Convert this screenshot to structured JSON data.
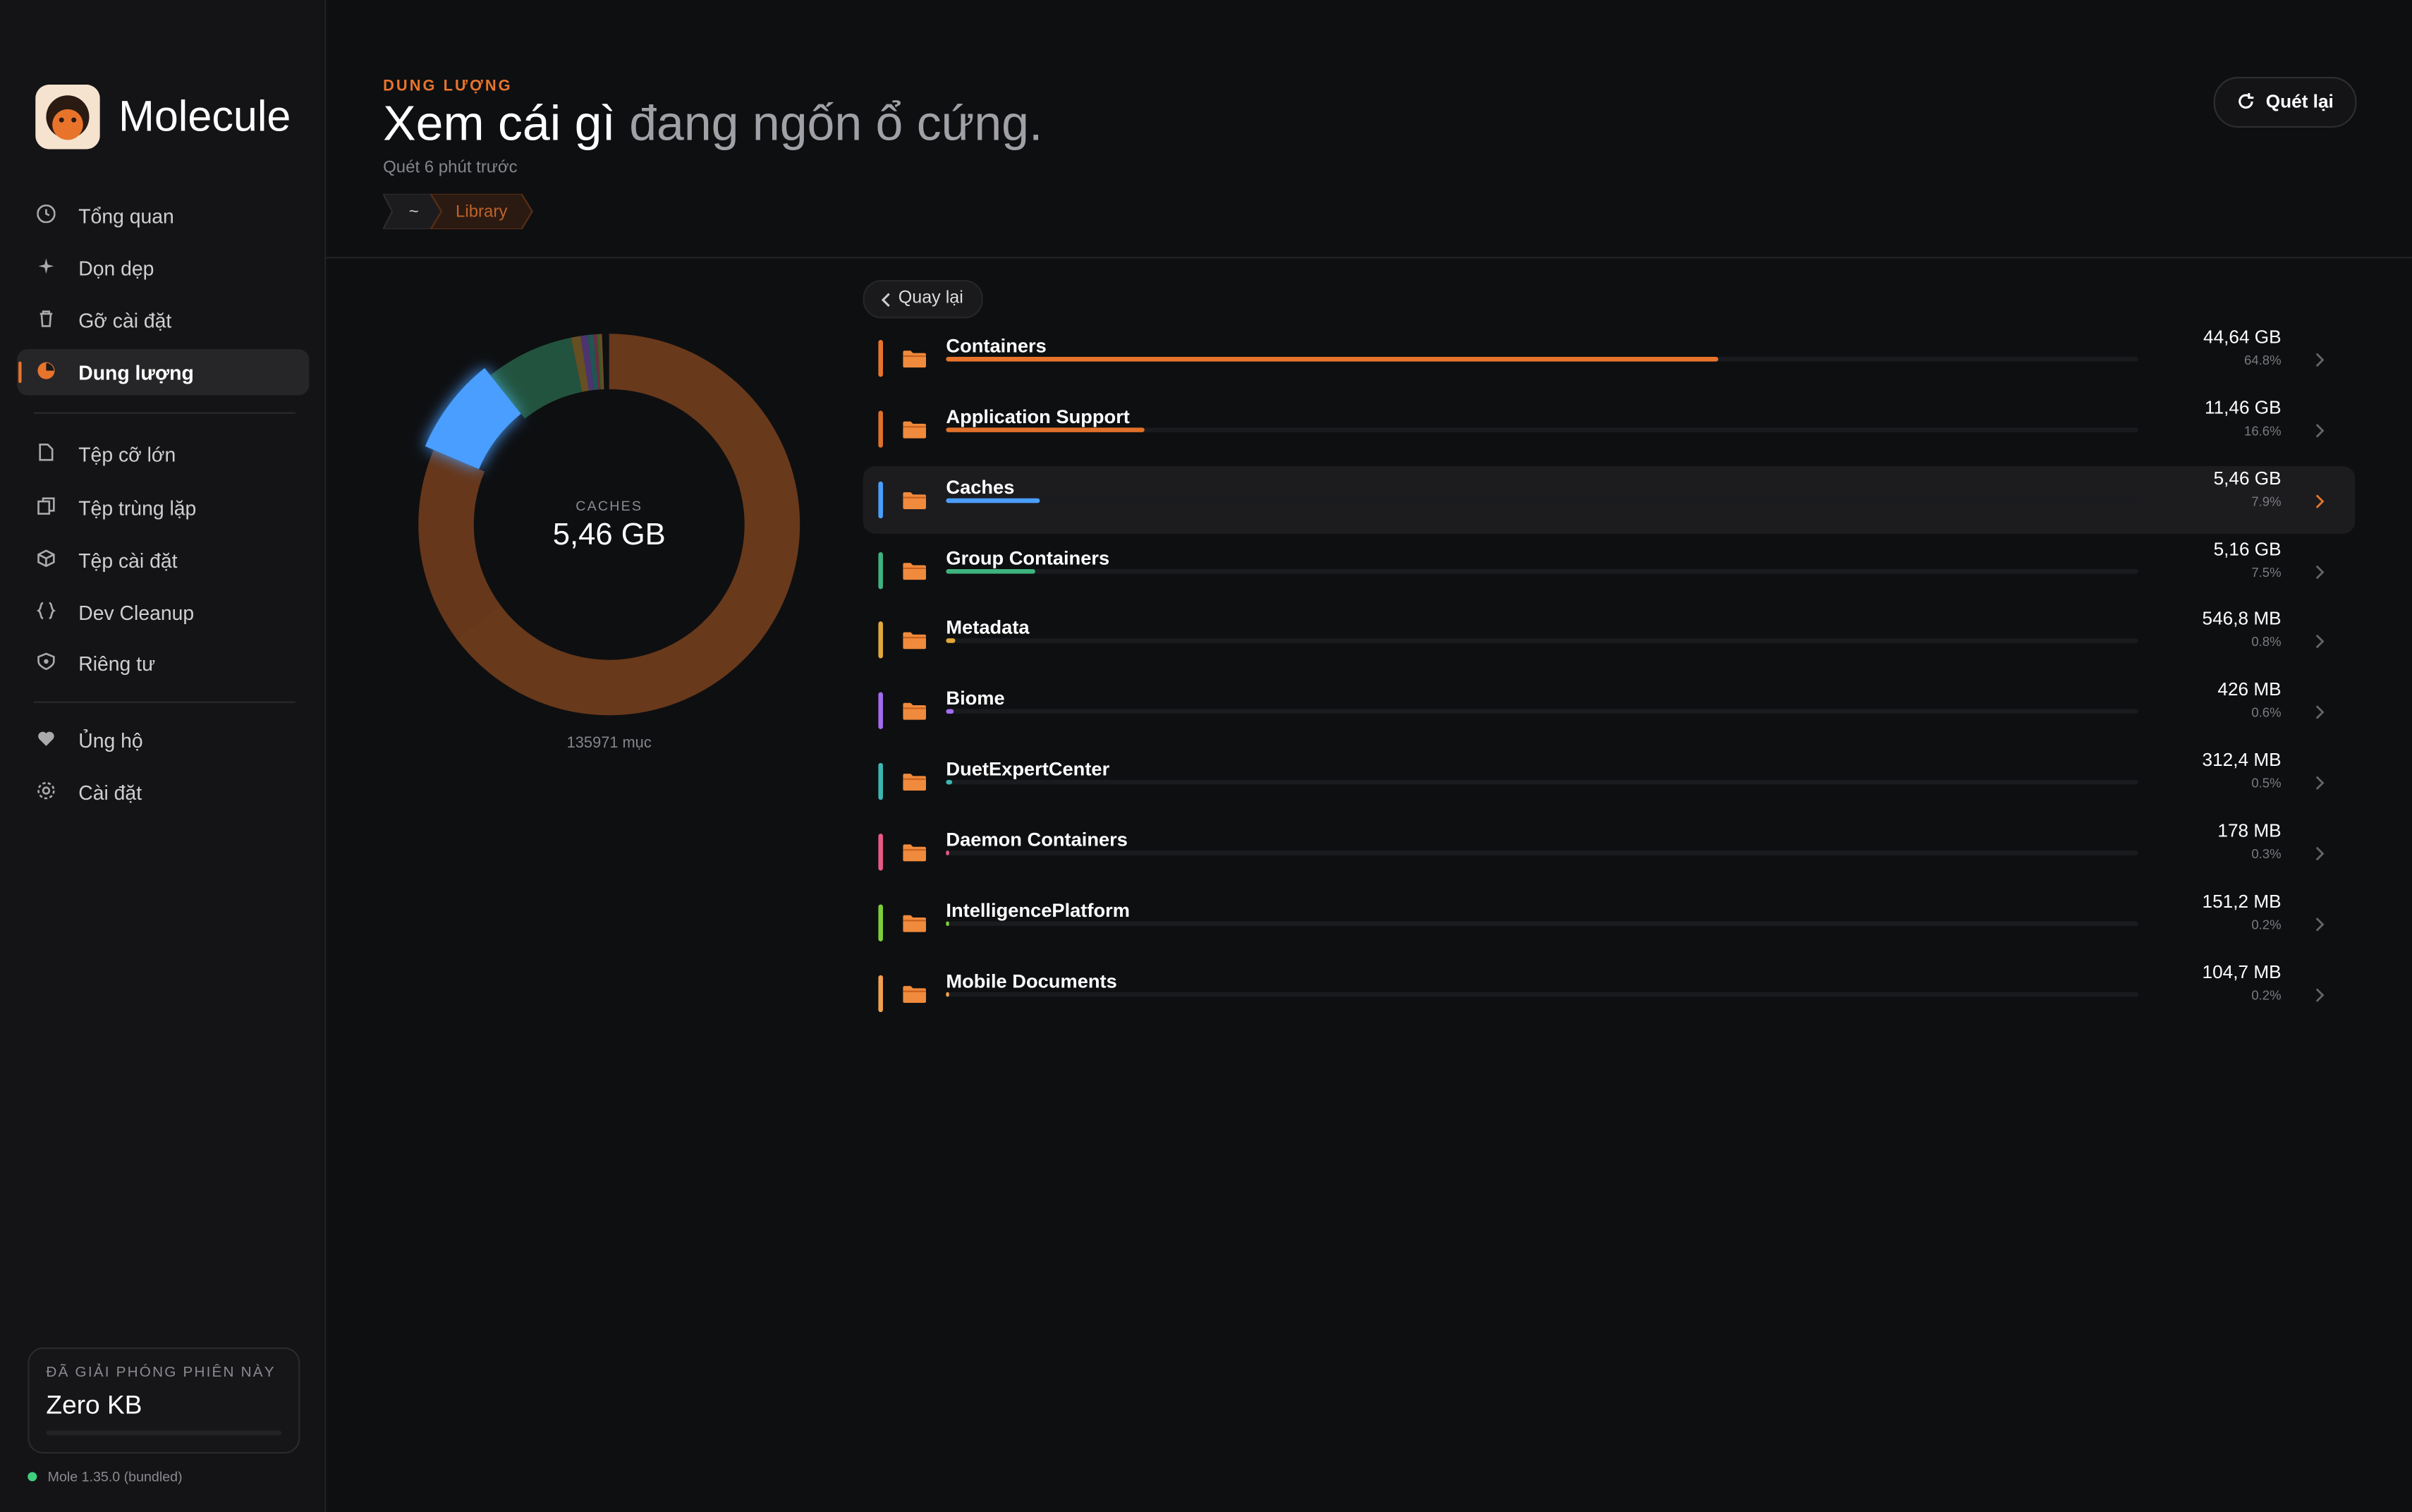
{
  "sidebar": {
    "app_name": "Molecule",
    "nav": [
      [
        {
          "label": "Tổng quan"
        },
        {
          "label": "Dọn dẹp"
        },
        {
          "label": "Gỡ cài đặt"
        },
        {
          "label": "Dung lượng"
        }
      ],
      [
        {
          "label": "Tệp cỡ lớn"
        },
        {
          "label": "Tệp trùng lặp"
        },
        {
          "label": "Tệp cài đặt"
        },
        {
          "label": "Dev Cleanup"
        },
        {
          "label": "Riêng tư"
        }
      ],
      [
        {
          "label": "Ủng hộ"
        },
        {
          "label": "Cài đặt"
        }
      ]
    ],
    "active": [
      0,
      3
    ],
    "footer": {
      "label": "ĐÃ GIẢI PHÓNG PHIÊN NÀY",
      "value": "Zero KB"
    },
    "version": "Mole 1.35.0 (bundled)"
  },
  "header": {
    "eyebrow": "DUNG LƯỢNG",
    "title_lead": "Xem cái gì",
    "title_rest": "đang ngốn ổ cứng.",
    "subtitle": "Quét 6 phút trước",
    "breadcrumbs": [
      "~",
      "Library"
    ],
    "rescan_button": "Quét lại"
  },
  "back_button": "Quay lại",
  "donut": {
    "center_label": "CACHES",
    "center_value": "5,46 GB",
    "item_count": "135971 mục"
  },
  "items": [
    {
      "name": "Containers",
      "size": "44,64 GB",
      "percent": {
        "value": 64.8,
        "label": "64.8%"
      },
      "color": "#e8742c"
    },
    {
      "name": "Application Support",
      "size": "11,46 GB",
      "percent": {
        "value": 16.6,
        "label": "16.6%"
      },
      "color": "#e0702a"
    },
    {
      "name": "Caches",
      "size": "5,46 GB",
      "percent": {
        "value": 7.9,
        "label": "7.9%"
      },
      "color": "#4a9eff"
    },
    {
      "name": "Group Containers",
      "size": "5,16 GB",
      "percent": {
        "value": 7.5,
        "label": "7.5%"
      },
      "color": "#3fb37f"
    },
    {
      "name": "Metadata",
      "size": "546,8 MB",
      "percent": {
        "value": 0.8,
        "label": "0.8%"
      },
      "color": "#e0a93b"
    },
    {
      "name": "Biome",
      "size": "426 MB",
      "percent": {
        "value": 0.6,
        "label": "0.6%"
      },
      "color": "#a36bf0"
    },
    {
      "name": "DuetExpertCenter",
      "size": "312,4 MB",
      "percent": {
        "value": 0.5,
        "label": "0.5%"
      },
      "color": "#3bb7b0"
    },
    {
      "name": "Daemon Containers",
      "size": "178 MB",
      "percent": {
        "value": 0.3,
        "label": "0.3%"
      },
      "color": "#e85a86"
    },
    {
      "name": "IntelligencePlatform",
      "size": "151,2 MB",
      "percent": {
        "value": 0.2,
        "label": "0.2%"
      },
      "color": "#7ccf3a"
    },
    {
      "name": "Mobile Documents",
      "size": "104,7 MB",
      "percent": {
        "value": 0.2,
        "label": "0.2%"
      },
      "color": "#f0a050"
    }
  ],
  "selected": 2
}
